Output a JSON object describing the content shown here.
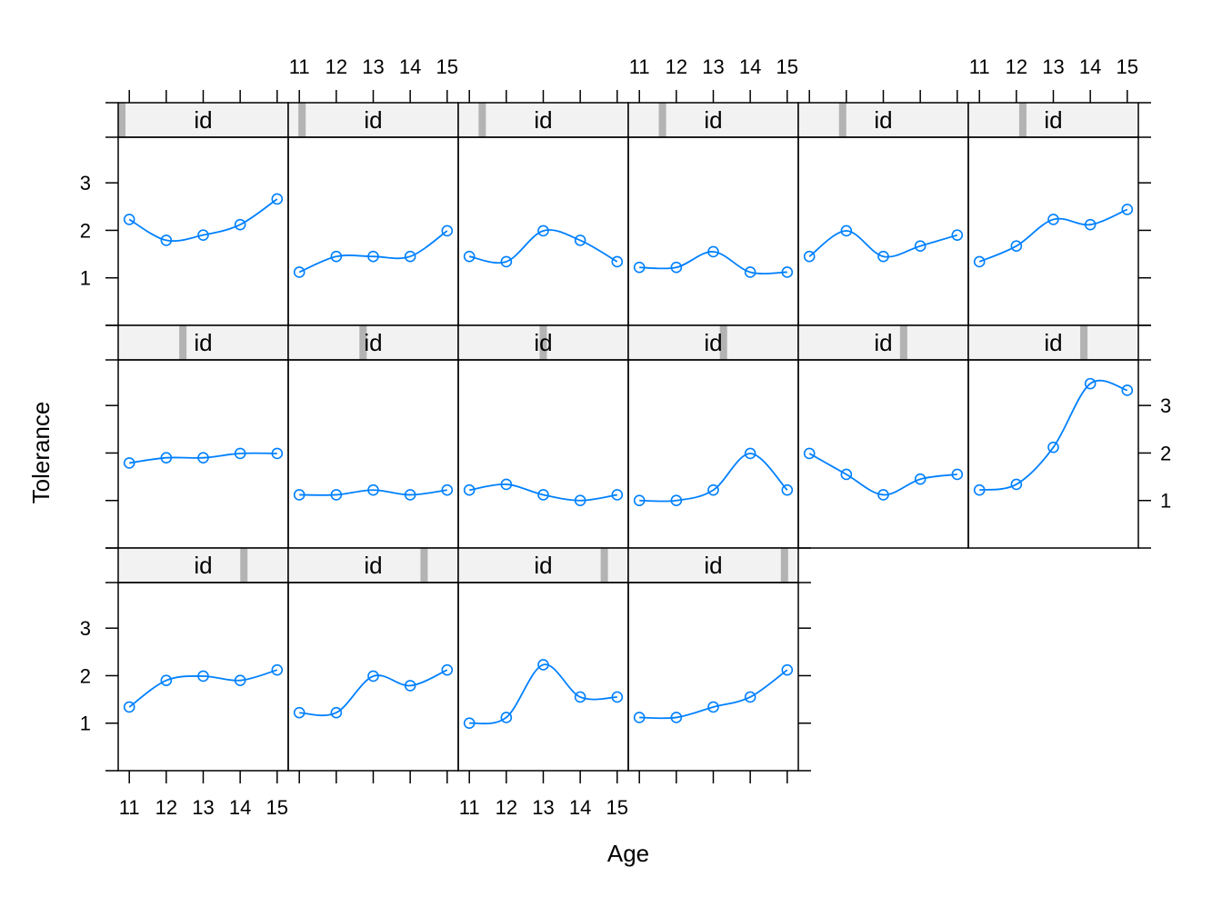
{
  "chart_data": {
    "type": "line",
    "xlabel": "Age",
    "ylabel": "Tolerance",
    "xlim": [
      10.7,
      15.3
    ],
    "ylim": [
      0,
      3.96
    ],
    "x_ticks": [
      11,
      12,
      13,
      14,
      15
    ],
    "y_ticks": [
      1,
      2,
      3
    ],
    "strip_label": "id",
    "layout": {
      "columns": 6,
      "rows": 3
    },
    "line_color": "#0080ff",
    "strip_bg": "#f2f2f2",
    "strip_marker_color": "#b3b3b3",
    "panels": [
      {
        "strip": "id",
        "marker": 0.0,
        "values": [
          2.23,
          1.79,
          1.9,
          2.12,
          2.66
        ]
      },
      {
        "strip": "id",
        "marker": 0.0625,
        "values": [
          1.12,
          1.45,
          1.45,
          1.45,
          1.99
        ]
      },
      {
        "strip": "id",
        "marker": 0.125,
        "values": [
          1.45,
          1.34,
          1.99,
          1.79,
          1.34
        ]
      },
      {
        "strip": "id",
        "marker": 0.1875,
        "values": [
          1.22,
          1.22,
          1.55,
          1.12,
          1.12
        ]
      },
      {
        "strip": "id",
        "marker": 0.25,
        "values": [
          1.45,
          1.99,
          1.45,
          1.67,
          1.9
        ]
      },
      {
        "strip": "id",
        "marker": 0.3125,
        "values": [
          1.34,
          1.67,
          2.23,
          2.12,
          2.44
        ]
      },
      {
        "strip": "id",
        "marker": 0.375,
        "values": [
          1.79,
          1.9,
          1.9,
          1.99,
          1.99
        ]
      },
      {
        "strip": "id",
        "marker": 0.4375,
        "values": [
          1.12,
          1.12,
          1.22,
          1.12,
          1.22
        ]
      },
      {
        "strip": "id",
        "marker": 0.5,
        "values": [
          1.22,
          1.34,
          1.12,
          1.0,
          1.12
        ]
      },
      {
        "strip": "id",
        "marker": 0.5625,
        "values": [
          1.0,
          1.0,
          1.22,
          1.99,
          1.22
        ]
      },
      {
        "strip": "id",
        "marker": 0.625,
        "values": [
          1.99,
          1.55,
          1.12,
          1.45,
          1.55
        ]
      },
      {
        "strip": "id",
        "marker": 0.6875,
        "values": [
          1.22,
          1.34,
          2.12,
          3.46,
          3.32
        ]
      },
      {
        "strip": "id",
        "marker": 0.75,
        "values": [
          1.34,
          1.9,
          1.99,
          1.9,
          2.12
        ]
      },
      {
        "strip": "id",
        "marker": 0.8125,
        "values": [
          1.22,
          1.22,
          1.99,
          1.79,
          2.12
        ]
      },
      {
        "strip": "id",
        "marker": 0.875,
        "values": [
          1.0,
          1.12,
          2.23,
          1.55,
          1.55
        ]
      },
      {
        "strip": "id",
        "marker": 0.9375,
        "values": [
          1.12,
          1.12,
          1.34,
          1.55,
          2.12
        ]
      }
    ]
  }
}
